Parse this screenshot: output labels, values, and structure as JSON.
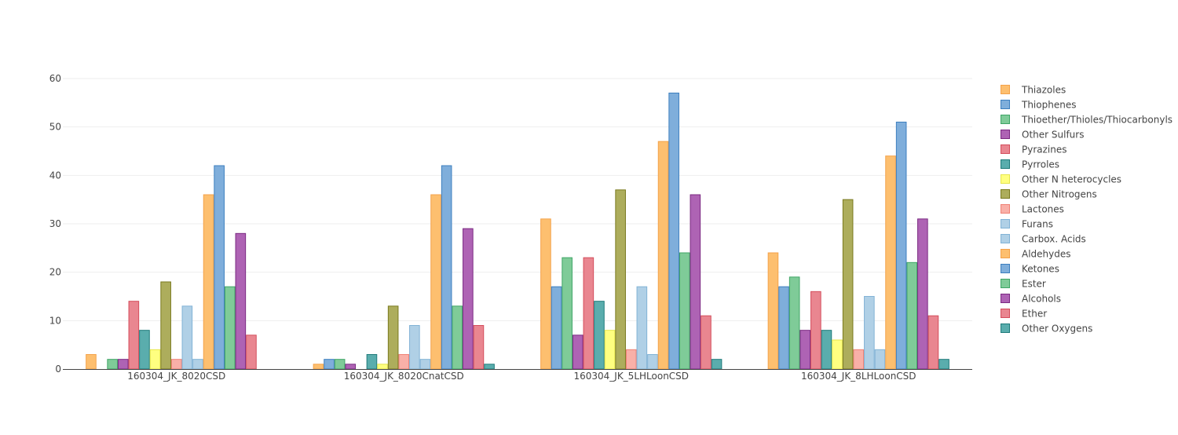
{
  "chart_data": {
    "type": "bar",
    "title": "",
    "xlabel": "",
    "ylabel": "",
    "ylim": [
      0,
      60
    ],
    "yticks": [
      0,
      10,
      20,
      30,
      40,
      50,
      60
    ],
    "grid": true,
    "legend_position": "right",
    "categories": [
      "160304_JK_8020CSD",
      "160304_JK_8020CnatCSD",
      "160304_JK_5LHLoonCSD",
      "160304_JK_8LHLoonCSD"
    ],
    "series": [
      {
        "name": "Thiazoles",
        "color": "#FDBF6F",
        "line": "#F4A24A",
        "values": [
          3,
          1,
          31,
          24
        ]
      },
      {
        "name": "Thiophenes",
        "color": "#7FAEDB",
        "line": "#3D7FBF",
        "values": [
          0,
          2,
          17,
          17
        ]
      },
      {
        "name": "Thioether/Thioles/Thiocarbonyls",
        "color": "#7FCB98",
        "line": "#3FA566",
        "values": [
          2,
          2,
          23,
          19
        ]
      },
      {
        "name": "Other Sulfurs",
        "color": "#AE63B4",
        "line": "#7B2A82",
        "values": [
          2,
          1,
          7,
          8
        ]
      },
      {
        "name": "Pyrazines",
        "color": "#E98690",
        "line": "#D44E5C",
        "values": [
          14,
          0,
          23,
          16
        ]
      },
      {
        "name": "Pyrroles",
        "color": "#5AADAD",
        "line": "#1F7B7B",
        "values": [
          8,
          3,
          14,
          8
        ]
      },
      {
        "name": "Other N heterocycles",
        "color": "#FFFF80",
        "line": "#E6E64D",
        "values": [
          4,
          1,
          8,
          6
        ]
      },
      {
        "name": "Other Nitrogens",
        "color": "#ADAD5C",
        "line": "#7A7A1F",
        "values": [
          18,
          13,
          37,
          35
        ]
      },
      {
        "name": "Lactones",
        "color": "#F9B0A8",
        "line": "#EF8276",
        "values": [
          2,
          3,
          4,
          4
        ]
      },
      {
        "name": "Furans",
        "color": "#B0D0E6",
        "line": "#82B3D6",
        "values": [
          13,
          9,
          17,
          15
        ]
      },
      {
        "name": "Carbox. Acids",
        "color": "#B0D0E6",
        "line": "#82B3D6",
        "values": [
          2,
          2,
          3,
          4
        ]
      },
      {
        "name": "Aldehydes",
        "color": "#FDBF6F",
        "line": "#F4A24A",
        "values": [
          36,
          36,
          47,
          44
        ]
      },
      {
        "name": "Ketones",
        "color": "#7FAEDB",
        "line": "#3D7FBF",
        "values": [
          42,
          42,
          57,
          51
        ]
      },
      {
        "name": "Ester",
        "color": "#7FCB98",
        "line": "#3FA566",
        "values": [
          17,
          13,
          24,
          22
        ]
      },
      {
        "name": "Alcohols",
        "color": "#AE63B4",
        "line": "#7B2A82",
        "values": [
          28,
          29,
          36,
          31
        ]
      },
      {
        "name": "Ether",
        "color": "#E98690",
        "line": "#D44E5C",
        "values": [
          7,
          9,
          11,
          11
        ]
      },
      {
        "name": "Other Oxygens",
        "color": "#5AADAD",
        "line": "#1F7B7B",
        "values": [
          0,
          1,
          2,
          2
        ]
      }
    ]
  }
}
